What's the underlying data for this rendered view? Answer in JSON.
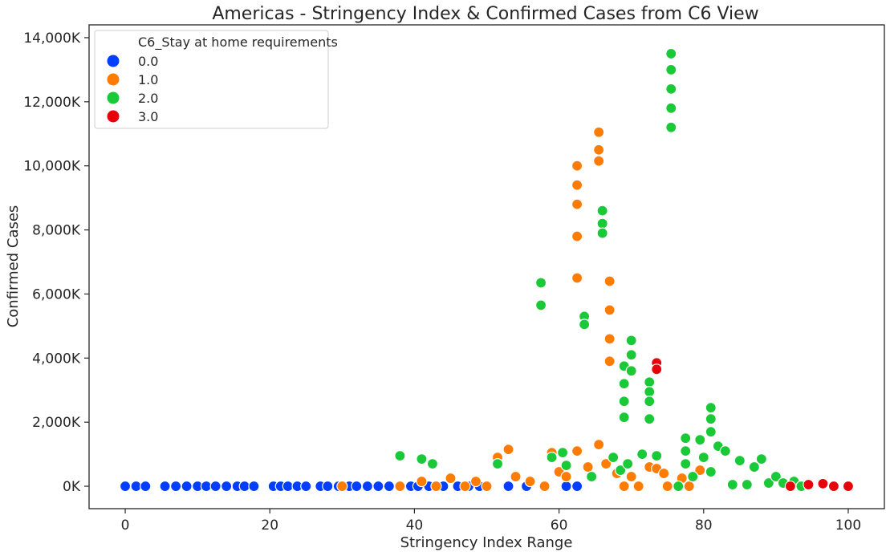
{
  "chart_data": {
    "type": "scatter",
    "title": "Americas - Stringency Index & Confirmed Cases from C6 View",
    "xlabel": "Stringency Index Range",
    "ylabel": "Confirmed Cases",
    "xlim": [
      -5,
      105
    ],
    "ylim": [
      -700,
      14400
    ],
    "x_ticks": [
      0,
      20,
      40,
      60,
      80,
      100
    ],
    "x_tick_labels": [
      "0",
      "20",
      "40",
      "60",
      "80",
      "100"
    ],
    "y_ticks": [
      0,
      2000,
      4000,
      6000,
      8000,
      10000,
      12000,
      14000
    ],
    "y_tick_labels": [
      "0K",
      "2,000K",
      "4,000K",
      "6,000K",
      "8,000K",
      "10,000K",
      "12,000K",
      "14,000K"
    ],
    "grid": false,
    "legend": {
      "title": "C6_Stay at home requirements",
      "placement": "top-left",
      "entries": [
        "0.0",
        "1.0",
        "2.0",
        "3.0"
      ]
    },
    "series": [
      {
        "name": "0.0",
        "color": "#023eff",
        "points": [
          [
            0,
            0
          ],
          [
            1.5,
            0
          ],
          [
            2.8,
            0
          ],
          [
            5.5,
            0
          ],
          [
            7,
            0
          ],
          [
            8.5,
            0
          ],
          [
            10,
            0
          ],
          [
            11.2,
            0
          ],
          [
            12.5,
            0
          ],
          [
            14,
            0
          ],
          [
            15.5,
            0
          ],
          [
            16.5,
            0
          ],
          [
            17.8,
            0
          ],
          [
            20.5,
            0
          ],
          [
            21.5,
            0
          ],
          [
            22.5,
            0
          ],
          [
            23.8,
            0
          ],
          [
            25,
            0
          ],
          [
            27,
            0
          ],
          [
            28,
            0
          ],
          [
            29.5,
            0
          ],
          [
            31,
            0
          ],
          [
            32,
            0
          ],
          [
            33.5,
            0
          ],
          [
            35,
            0
          ],
          [
            36.5,
            0
          ],
          [
            38,
            0
          ],
          [
            39.5,
            0
          ],
          [
            40.5,
            0
          ],
          [
            42,
            0
          ],
          [
            44,
            0
          ],
          [
            46,
            0
          ],
          [
            47.5,
            0
          ],
          [
            49,
            0
          ],
          [
            53,
            0
          ],
          [
            55.5,
            0
          ],
          [
            61,
            0
          ],
          [
            62.5,
            0
          ]
        ]
      },
      {
        "name": "1.0",
        "color": "#ff7c00",
        "points": [
          [
            30,
            0
          ],
          [
            38,
            0
          ],
          [
            41,
            150
          ],
          [
            43,
            0
          ],
          [
            45,
            250
          ],
          [
            47,
            0
          ],
          [
            48.5,
            150
          ],
          [
            50,
            0
          ],
          [
            51.5,
            900
          ],
          [
            53,
            1150
          ],
          [
            54,
            300
          ],
          [
            56,
            150
          ],
          [
            58,
            0
          ],
          [
            59,
            1050
          ],
          [
            60,
            450
          ],
          [
            61,
            300
          ],
          [
            62.5,
            1100
          ],
          [
            62.5,
            7800
          ],
          [
            62.5,
            10000
          ],
          [
            62.5,
            9400
          ],
          [
            62.5,
            8800
          ],
          [
            62.5,
            6500
          ],
          [
            64,
            600
          ],
          [
            65.5,
            11050
          ],
          [
            65.5,
            10500
          ],
          [
            65.5,
            10150
          ],
          [
            65.5,
            1300
          ],
          [
            66.5,
            700
          ],
          [
            67,
            6400
          ],
          [
            67,
            5500
          ],
          [
            67,
            4600
          ],
          [
            67,
            3900
          ],
          [
            68,
            400
          ],
          [
            69,
            0
          ],
          [
            70,
            300
          ],
          [
            71,
            0
          ],
          [
            72.5,
            600
          ],
          [
            73.5,
            550
          ],
          [
            74.5,
            400
          ],
          [
            75,
            0
          ],
          [
            77,
            250
          ],
          [
            78,
            0
          ],
          [
            79.5,
            500
          ]
        ]
      },
      {
        "name": "2.0",
        "color": "#1ac938",
        "points": [
          [
            38,
            950
          ],
          [
            41,
            850
          ],
          [
            42.5,
            700
          ],
          [
            51.5,
            700
          ],
          [
            57.5,
            6350
          ],
          [
            57.5,
            5650
          ],
          [
            59,
            900
          ],
          [
            60.5,
            1050
          ],
          [
            61,
            650
          ],
          [
            63.5,
            5300
          ],
          [
            63.5,
            5050
          ],
          [
            64.5,
            300
          ],
          [
            66,
            8600
          ],
          [
            66,
            8200
          ],
          [
            66,
            7900
          ],
          [
            67.5,
            900
          ],
          [
            68.5,
            500
          ],
          [
            69,
            3750
          ],
          [
            69,
            3200
          ],
          [
            69,
            2650
          ],
          [
            69,
            2150
          ],
          [
            69.5,
            700
          ],
          [
            70,
            4550
          ],
          [
            70,
            4100
          ],
          [
            70,
            3600
          ],
          [
            71.5,
            1000
          ],
          [
            72.5,
            3250
          ],
          [
            72.5,
            2950
          ],
          [
            72.5,
            2650
          ],
          [
            72.5,
            2100
          ],
          [
            73.5,
            950
          ],
          [
            75.5,
            13500
          ],
          [
            75.5,
            13000
          ],
          [
            75.5,
            12400
          ],
          [
            75.5,
            11800
          ],
          [
            75.5,
            11200
          ],
          [
            76.5,
            0
          ],
          [
            77.5,
            1500
          ],
          [
            77.5,
            1100
          ],
          [
            77.5,
            700
          ],
          [
            78.5,
            300
          ],
          [
            79.5,
            1450
          ],
          [
            80,
            900
          ],
          [
            81,
            2450
          ],
          [
            81,
            2100
          ],
          [
            81,
            1700
          ],
          [
            81,
            450
          ],
          [
            82,
            1250
          ],
          [
            83,
            1100
          ],
          [
            84,
            50
          ],
          [
            85,
            800
          ],
          [
            86,
            50
          ],
          [
            87,
            600
          ],
          [
            88,
            850
          ],
          [
            89,
            100
          ],
          [
            90,
            300
          ],
          [
            91,
            100
          ],
          [
            92.5,
            150
          ],
          [
            93.5,
            0
          ]
        ]
      },
      {
        "name": "3.0",
        "color": "#e8000b",
        "points": [
          [
            73.5,
            3850
          ],
          [
            73.5,
            3650
          ],
          [
            92,
            0
          ],
          [
            94.5,
            50
          ],
          [
            96.5,
            80
          ],
          [
            98,
            0
          ],
          [
            100,
            0
          ]
        ]
      }
    ]
  }
}
